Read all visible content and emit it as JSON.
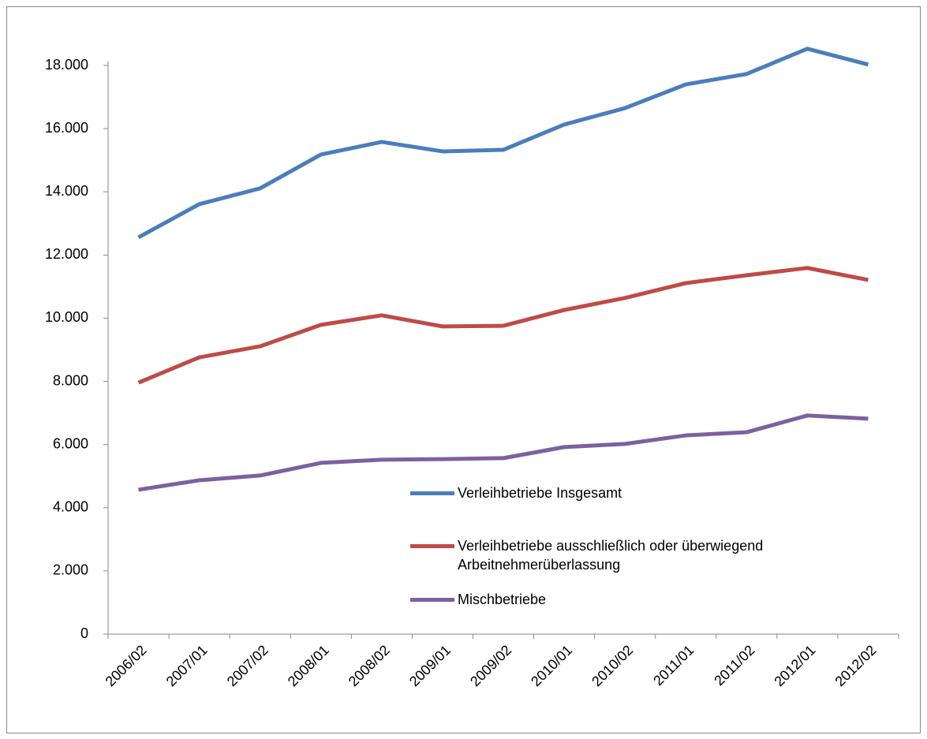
{
  "chart_data": {
    "type": "line",
    "categories": [
      "2006/02",
      "2007/01",
      "2007/02",
      "2008/01",
      "2008/02",
      "2009/01",
      "2009/02",
      "2010/01",
      "2010/02",
      "2011/01",
      "2011/02",
      "2012/01",
      "2012/02"
    ],
    "series": [
      {
        "name": "Verleihbetriebe Insgesamt",
        "color": "#4a7ebb",
        "values": [
          12560,
          13610,
          14110,
          15180,
          15580,
          15280,
          15330,
          16130,
          16650,
          17400,
          17730,
          18530,
          18030
        ]
      },
      {
        "name": "Verleihbetriebe ausschließlich oder überwiegend Arbeitnehmerüberlassung",
        "color": "#be4b48",
        "values": [
          7960,
          8760,
          9110,
          9790,
          10090,
          9740,
          9760,
          10260,
          10640,
          11110,
          11360,
          11590,
          11210
        ]
      },
      {
        "name": "Mischbetriebe",
        "color": "#7d60a0",
        "values": [
          4570,
          4870,
          5020,
          5420,
          5520,
          5540,
          5570,
          5920,
          6020,
          6290,
          6390,
          6920,
          6820
        ]
      }
    ],
    "ylim": [
      0,
      18000
    ],
    "yticks": [
      0,
      {
        "value": 2000,
        "label": "2.000"
      },
      {
        "value": 4000,
        "label": "4.000"
      },
      {
        "value": 6000,
        "label": "6.000"
      },
      {
        "value": 8000,
        "label": "8.000"
      },
      {
        "value": 10000,
        "label": "10.000"
      },
      {
        "value": 12000,
        "label": "12.000"
      },
      {
        "value": 14000,
        "label": "14.000"
      },
      {
        "value": 16000,
        "label": "16.000"
      },
      {
        "value": 18000,
        "label": "18.000"
      }
    ]
  }
}
